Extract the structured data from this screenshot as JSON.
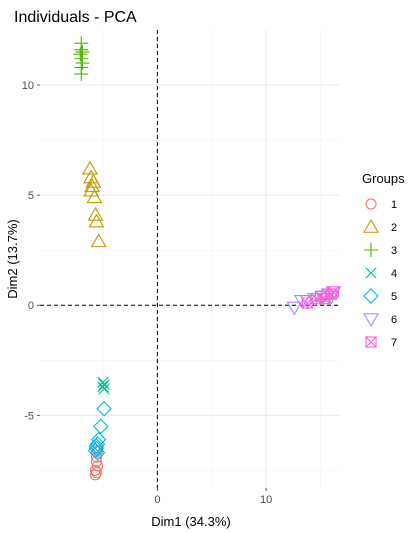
{
  "chart_data": {
    "type": "scatter",
    "title": "Individuals - PCA",
    "xlabel": "Dim1 (34.3%)",
    "ylabel": "Dim2 (13.7%)",
    "xlim": [
      -10.8,
      16.8
    ],
    "ylim": [
      -8.3,
      12.5
    ],
    "xticks": [
      0,
      10
    ],
    "yticks": [
      -5,
      0,
      5,
      10
    ],
    "grid": true,
    "reference_lines": {
      "x": 0,
      "y": 0,
      "style": "dashed"
    },
    "legend": {
      "title": "Groups",
      "position": "right"
    },
    "series": [
      {
        "name": "1",
        "shape": "circle",
        "color": "#F8766D",
        "points": [
          [
            -5.6,
            -7.6
          ],
          [
            -5.7,
            -7.5
          ],
          [
            -5.5,
            -7.3
          ],
          [
            -5.6,
            -7.1
          ],
          [
            -5.6,
            -6.9
          ],
          [
            -5.5,
            -6.6
          ],
          [
            -5.7,
            -7.7
          ]
        ]
      },
      {
        "name": "2",
        "shape": "triangle-up",
        "color": "#C49A00",
        "points": [
          [
            -6.2,
            6.2
          ],
          [
            -6.1,
            5.8
          ],
          [
            -5.9,
            5.6
          ],
          [
            -6.0,
            5.4
          ],
          [
            -6.1,
            5.2
          ],
          [
            -5.8,
            4.9
          ],
          [
            -5.7,
            4.1
          ],
          [
            -5.6,
            3.8
          ],
          [
            -5.4,
            2.9
          ]
        ]
      },
      {
        "name": "3",
        "shape": "plus",
        "color": "#53B400",
        "points": [
          [
            -7.0,
            11.9
          ],
          [
            -7.0,
            11.6
          ],
          [
            -6.9,
            11.5
          ],
          [
            -7.1,
            11.4
          ],
          [
            -7.0,
            11.2
          ],
          [
            -6.9,
            11.0
          ],
          [
            -7.0,
            10.8
          ],
          [
            -7.0,
            10.5
          ]
        ]
      },
      {
        "name": "4",
        "shape": "x",
        "color": "#00C094",
        "points": [
          [
            -5.0,
            -3.5
          ],
          [
            -4.9,
            -3.6
          ],
          [
            -5.0,
            -3.7
          ],
          [
            -4.9,
            -3.8
          ]
        ]
      },
      {
        "name": "5",
        "shape": "diamond",
        "color": "#00B6EB",
        "points": [
          [
            -4.9,
            -4.7
          ],
          [
            -5.2,
            -5.5
          ],
          [
            -5.4,
            -6.1
          ],
          [
            -5.5,
            -6.3
          ],
          [
            -5.6,
            -6.4
          ],
          [
            -5.6,
            -6.5
          ],
          [
            -5.7,
            -6.6
          ],
          [
            -5.5,
            -6.7
          ]
        ]
      },
      {
        "name": "6",
        "shape": "triangle-down",
        "color": "#A58AFF",
        "points": [
          [
            12.6,
            -0.1
          ],
          [
            13.3,
            0.2
          ],
          [
            13.8,
            0.2
          ],
          [
            14.5,
            0.3
          ],
          [
            15.2,
            0.4
          ],
          [
            15.8,
            0.5
          ],
          [
            16.2,
            0.6
          ],
          [
            16.0,
            0.4
          ]
        ]
      },
      {
        "name": "7",
        "shape": "square-x",
        "color": "#FB61D7",
        "points": [
          [
            13.8,
            0.1
          ],
          [
            14.6,
            0.3
          ],
          [
            15.0,
            0.4
          ],
          [
            15.6,
            0.5
          ],
          [
            16.2,
            0.6
          ],
          [
            15.4,
            0.3
          ],
          [
            16.0,
            0.5
          ]
        ]
      }
    ]
  }
}
